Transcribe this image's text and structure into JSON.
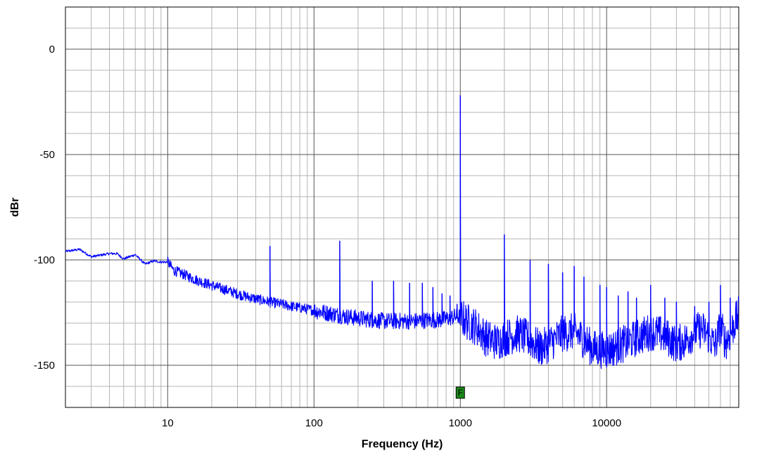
{
  "chart_data": {
    "type": "line",
    "title": "",
    "xlabel": "Frequency (Hz)",
    "ylabel": "dBr",
    "x_scale": "log",
    "xlim": [
      2,
      80000
    ],
    "ylim": [
      -170,
      20
    ],
    "x_ticks": [
      {
        "value": 10,
        "label": "10"
      },
      {
        "value": 100,
        "label": "100"
      },
      {
        "value": 1000,
        "label": "1000"
      },
      {
        "value": 10000,
        "label": "10000"
      }
    ],
    "y_ticks": [
      {
        "value": 0,
        "label": "0"
      },
      {
        "value": -50,
        "label": "-50"
      },
      {
        "value": -100,
        "label": "-100"
      },
      {
        "value": -150,
        "label": "-150"
      }
    ],
    "grid": true,
    "line_color": "#0000ff",
    "noise_floor": [
      [
        2,
        -96
      ],
      [
        2.5,
        -95
      ],
      [
        3,
        -98.5
      ],
      [
        4,
        -97
      ],
      [
        4.5,
        -97
      ],
      [
        5,
        -99.5
      ],
      [
        6,
        -97.5
      ],
      [
        7,
        -102
      ],
      [
        8,
        -100.5
      ],
      [
        9,
        -101
      ],
      [
        10,
        -101
      ],
      [
        11,
        -105
      ],
      [
        13,
        -107
      ],
      [
        15,
        -109
      ],
      [
        18,
        -111
      ],
      [
        22,
        -113
      ],
      [
        27,
        -115
      ],
      [
        33,
        -117
      ],
      [
        40,
        -118.5
      ],
      [
        50,
        -120
      ],
      [
        60,
        -121
      ],
      [
        70,
        -122
      ],
      [
        85,
        -123
      ],
      [
        100,
        -124
      ],
      [
        130,
        -125.5
      ],
      [
        170,
        -127
      ],
      [
        220,
        -128
      ],
      [
        300,
        -129
      ],
      [
        400,
        -129
      ],
      [
        500,
        -129
      ],
      [
        600,
        -128.5
      ],
      [
        700,
        -128.5
      ],
      [
        800,
        -128
      ],
      [
        900,
        -127
      ],
      [
        1000,
        -127
      ],
      [
        1100,
        -129
      ],
      [
        1300,
        -132
      ],
      [
        1500,
        -137
      ],
      [
        1800,
        -139
      ],
      [
        2000,
        -137
      ],
      [
        2500,
        -135
      ],
      [
        3000,
        -138
      ],
      [
        3500,
        -142
      ],
      [
        4000,
        -140
      ],
      [
        5000,
        -135
      ],
      [
        6000,
        -134
      ],
      [
        7000,
        -138
      ],
      [
        8000,
        -142
      ],
      [
        10000,
        -143
      ],
      [
        12000,
        -141
      ],
      [
        15000,
        -138
      ],
      [
        20000,
        -134
      ],
      [
        25000,
        -136
      ],
      [
        30000,
        -140
      ],
      [
        35000,
        -138
      ],
      [
        40000,
        -134
      ],
      [
        45000,
        -133
      ],
      [
        50000,
        -136
      ],
      [
        55000,
        -141
      ],
      [
        60000,
        -131
      ],
      [
        65000,
        -139
      ],
      [
        70000,
        -135
      ],
      [
        75000,
        -130
      ],
      [
        80000,
        -126
      ]
    ],
    "peaks": [
      [
        50,
        -93.5
      ],
      [
        150,
        -91
      ],
      [
        250,
        -110
      ],
      [
        350,
        -110
      ],
      [
        450,
        -111
      ],
      [
        550,
        -111
      ],
      [
        650,
        -113
      ],
      [
        750,
        -116
      ],
      [
        850,
        -117
      ],
      [
        950,
        -121
      ],
      [
        1000,
        -22
      ],
      [
        2000,
        -88
      ],
      [
        3000,
        -100
      ],
      [
        4000,
        -102
      ],
      [
        5000,
        -106
      ],
      [
        6000,
        -103
      ],
      [
        7000,
        -108
      ],
      [
        9000,
        -112
      ],
      [
        10000,
        -113
      ],
      [
        12000,
        -117
      ],
      [
        14000,
        -115
      ],
      [
        16000,
        -118
      ],
      [
        20000,
        -112
      ],
      [
        25000,
        -118
      ],
      [
        30000,
        -120
      ],
      [
        40000,
        -122
      ],
      [
        50000,
        -120
      ],
      [
        60000,
        -112
      ],
      [
        70000,
        -118
      ]
    ],
    "marker": {
      "label": "F",
      "x": 1000,
      "color": "#1a8a1a"
    }
  }
}
